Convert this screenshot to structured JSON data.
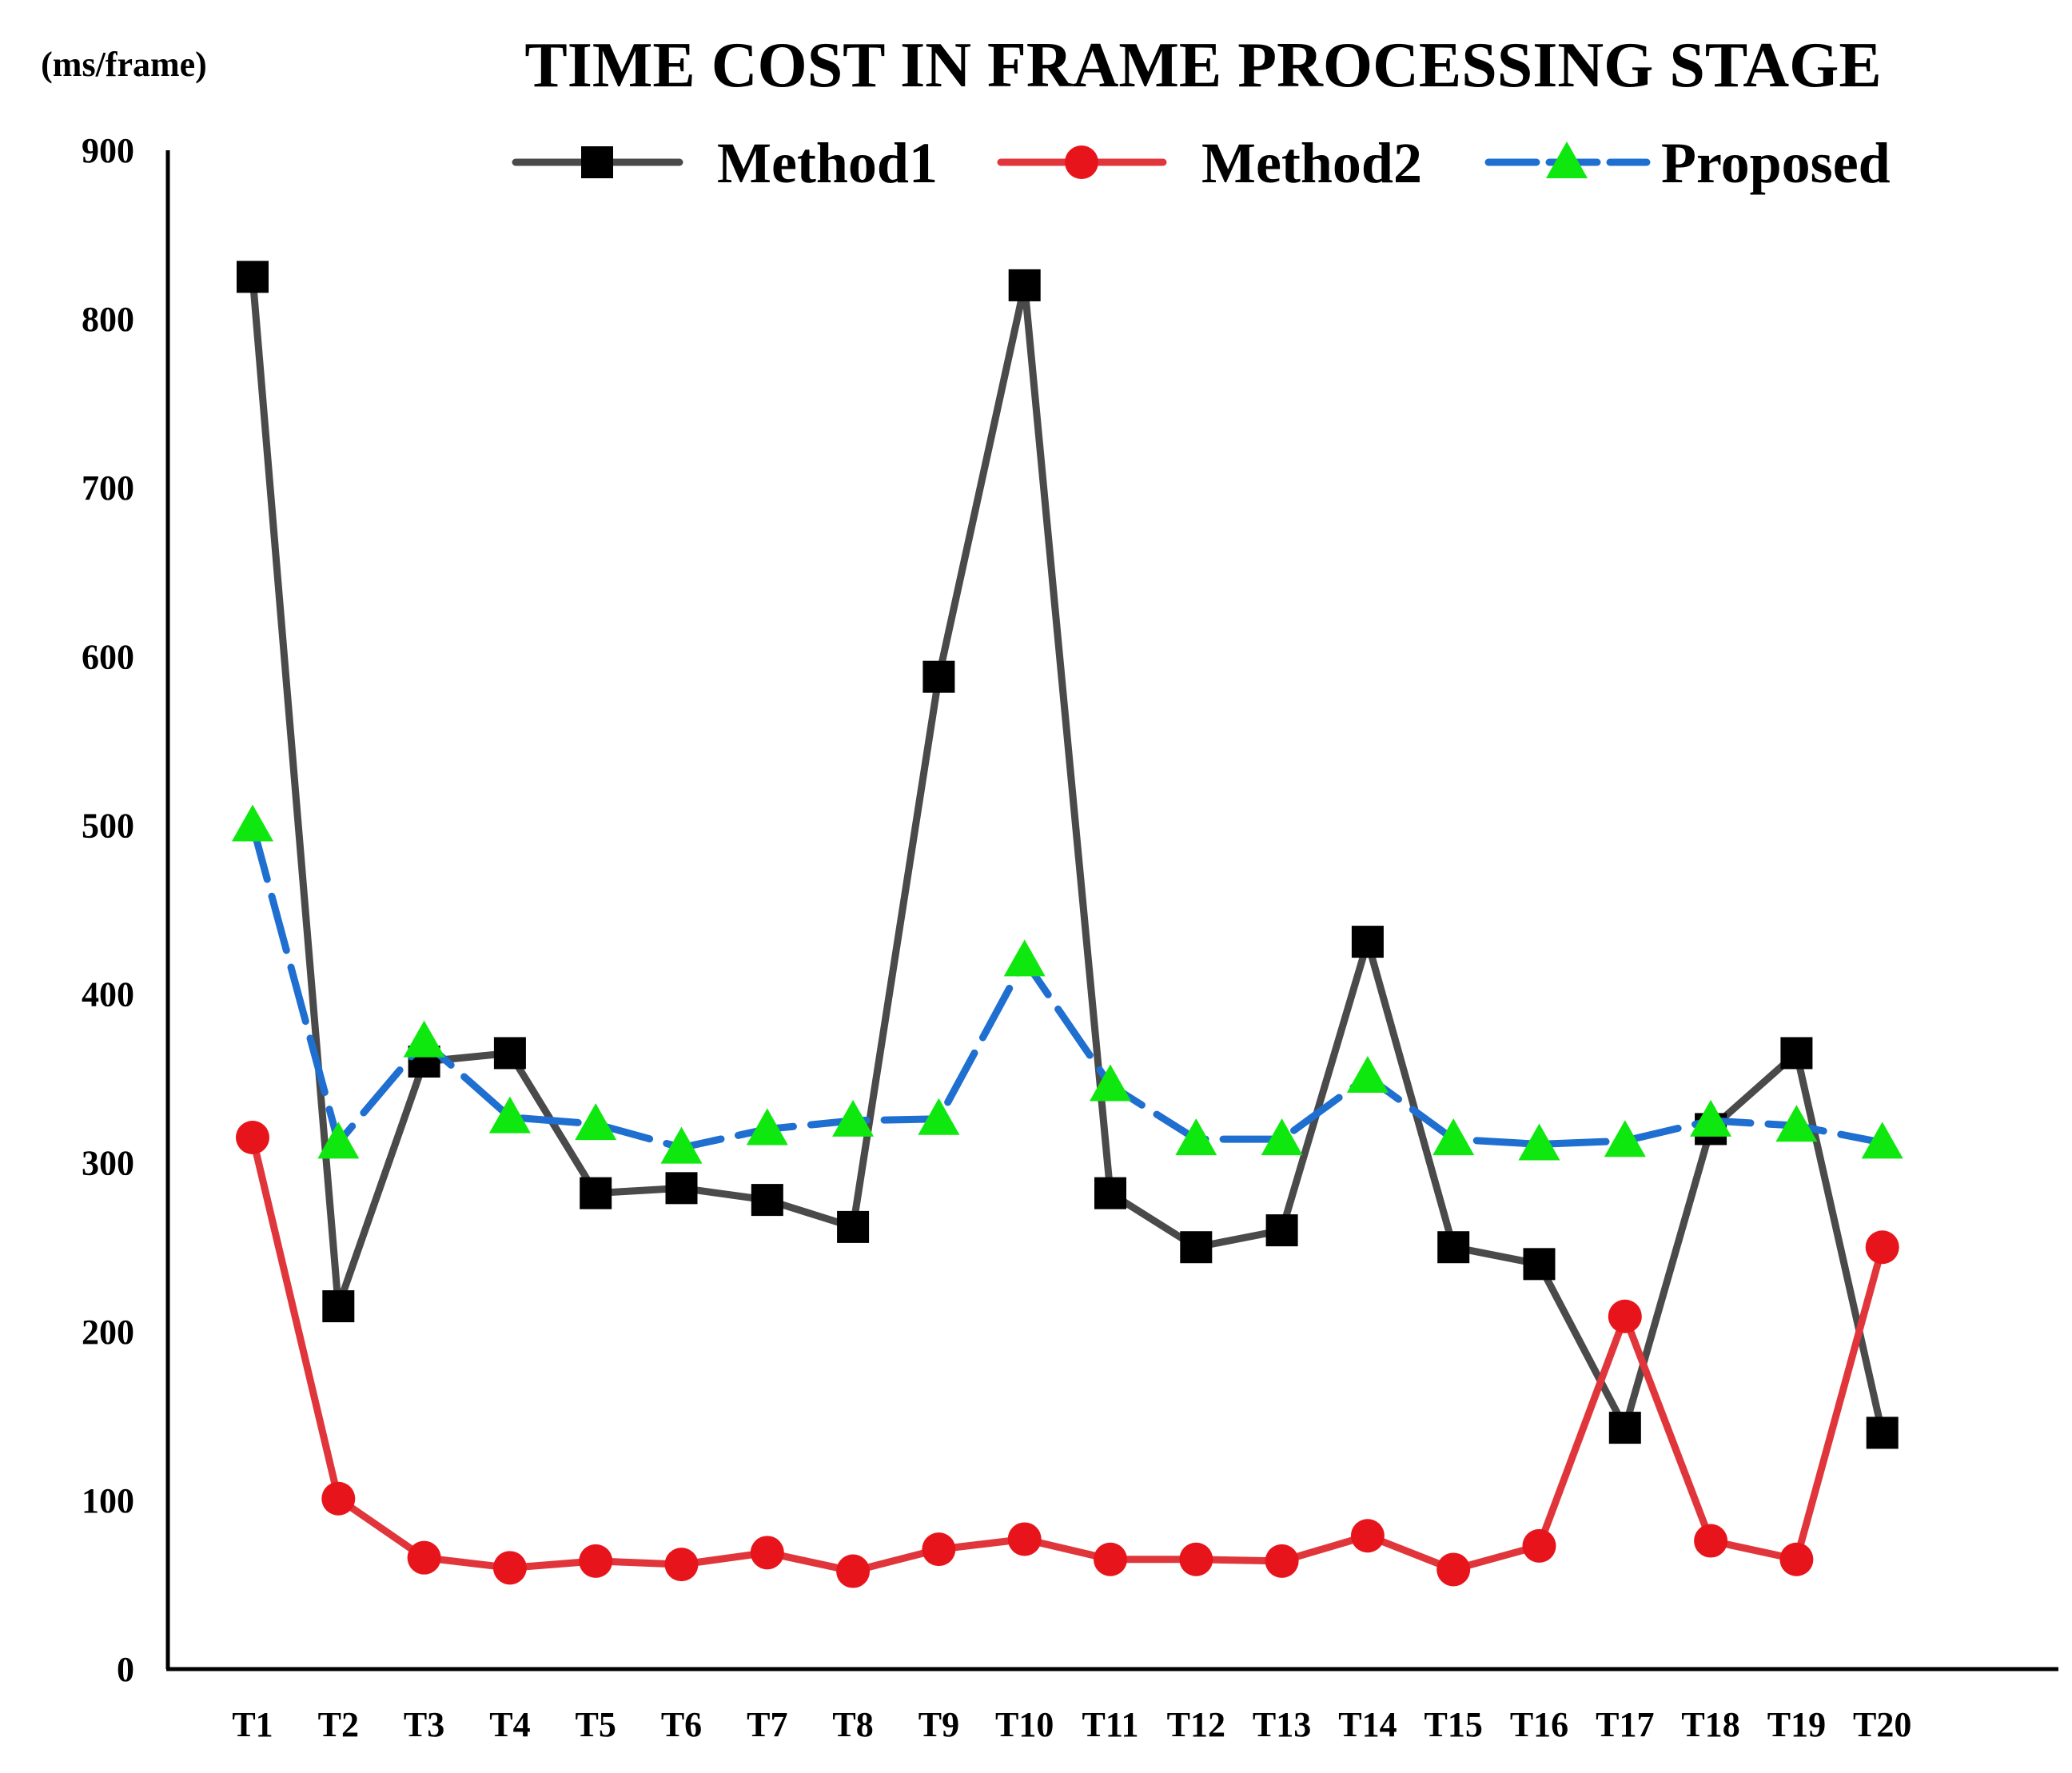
{
  "chart_data": {
    "type": "line",
    "title": "TIME COST IN FRAME PROCESSING STAGE",
    "ylabel": "(ms/frame)",
    "xlabel": "",
    "ylim": [
      0,
      900
    ],
    "yticks": [
      0,
      100,
      200,
      300,
      400,
      500,
      600,
      700,
      800,
      900
    ],
    "grid": false,
    "legend_position": "top",
    "categories": [
      "T1",
      "T2",
      "T3",
      "T4",
      "T5",
      "T6",
      "T7",
      "T8",
      "T9",
      "T10",
      "T11",
      "T12",
      "T13",
      "T14",
      "T15",
      "T16",
      "T17",
      "T18",
      "T19",
      "T20"
    ],
    "series": [
      {
        "name": "Method1",
        "marker": "square",
        "line_color": "#4a4a4a",
        "marker_color": "#000000",
        "values": [
          825,
          215,
          360,
          365,
          282,
          285,
          278,
          262,
          588,
          820,
          282,
          250,
          260,
          431,
          250,
          240,
          143,
          320,
          365,
          140
        ]
      },
      {
        "name": "Method2",
        "marker": "circle",
        "line_color": "#e0363b",
        "marker_color": "#e8141b",
        "values": [
          315,
          101,
          66,
          60,
          64,
          62,
          69,
          58,
          71,
          77,
          65,
          65,
          64,
          79,
          59,
          73,
          209,
          76,
          65,
          250
        ]
      },
      {
        "name": "Proposed",
        "marker": "triangle",
        "line_color": "#1f6fd1",
        "line_style": "dashed",
        "marker_color": "#0fe80f",
        "values": [
          500,
          312,
          372,
          327,
          323,
          309,
          320,
          325,
          326,
          420,
          346,
          314,
          314,
          351,
          314,
          311,
          313,
          325,
          322,
          312
        ]
      }
    ]
  }
}
